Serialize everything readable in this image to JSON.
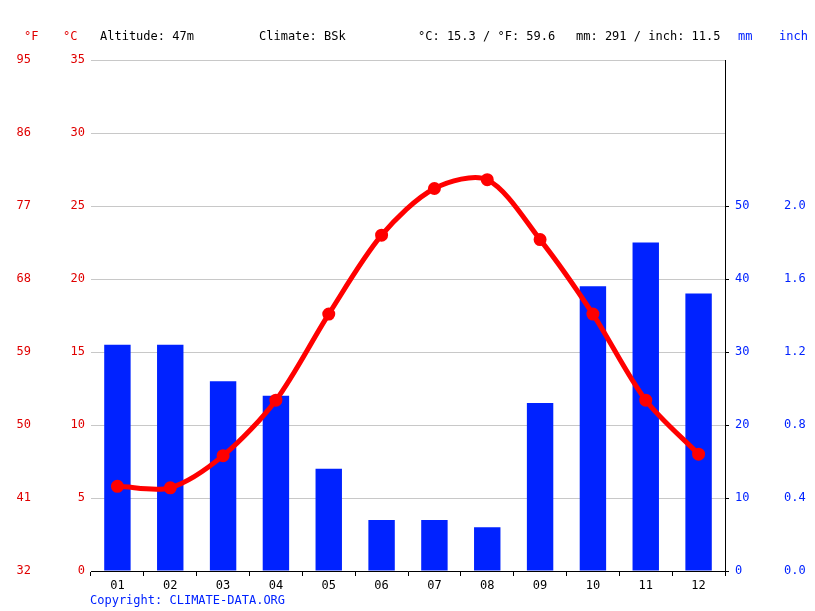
{
  "chart_data": {
    "type": "bar",
    "annotations": [
      "Altitude: 47m",
      "Climate: BSk",
      "°C: 15.3 / °F: 59.6",
      "mm: 291 / inch: 11.5"
    ],
    "source": "Copyright: CLIMATE-DATA.ORG",
    "categories": [
      "01",
      "02",
      "03",
      "04",
      "05",
      "06",
      "07",
      "08",
      "09",
      "10",
      "11",
      "12"
    ],
    "series": [
      {
        "type": "line",
        "color": "#ff0000",
        "axis": "y",
        "marker": "circle",
        "values": [
          5.8,
          5.7,
          7.9,
          11.7,
          17.6,
          23.0,
          26.2,
          26.8,
          22.7,
          17.6,
          11.7,
          8.0
        ]
      },
      {
        "type": "bar",
        "color": "#0022ff",
        "axis": "y2",
        "values": [
          31,
          31,
          26,
          24,
          14,
          7,
          7,
          6,
          23,
          39,
          45,
          38
        ]
      }
    ],
    "y_label": "°C",
    "ylim": [
      0,
      35
    ],
    "yticks": [
      0,
      5,
      10,
      15,
      20,
      25,
      30,
      35
    ],
    "y2_label": "mm",
    "y2lim": [
      0,
      70
    ],
    "y2ticks": [
      0,
      10,
      20,
      30,
      40,
      50
    ],
    "y3_label": "°F",
    "y3lim": [
      32,
      95
    ],
    "y3ticks": [
      32,
      41,
      50,
      59,
      68,
      77,
      86,
      95
    ],
    "y4_label": "inch",
    "y4lim": [
      0,
      2.8
    ],
    "y4ticks": [
      {
        "value": 0,
        "label": "0.0"
      },
      {
        "value": 0.4,
        "label": "0.4"
      },
      {
        "value": 0.8,
        "label": "0.8"
      },
      {
        "value": 1.2,
        "label": "1.2"
      },
      {
        "value": 1.6,
        "label": "1.6"
      },
      {
        "value": 2.0,
        "label": "2.0"
      }
    ],
    "grid": true
  }
}
